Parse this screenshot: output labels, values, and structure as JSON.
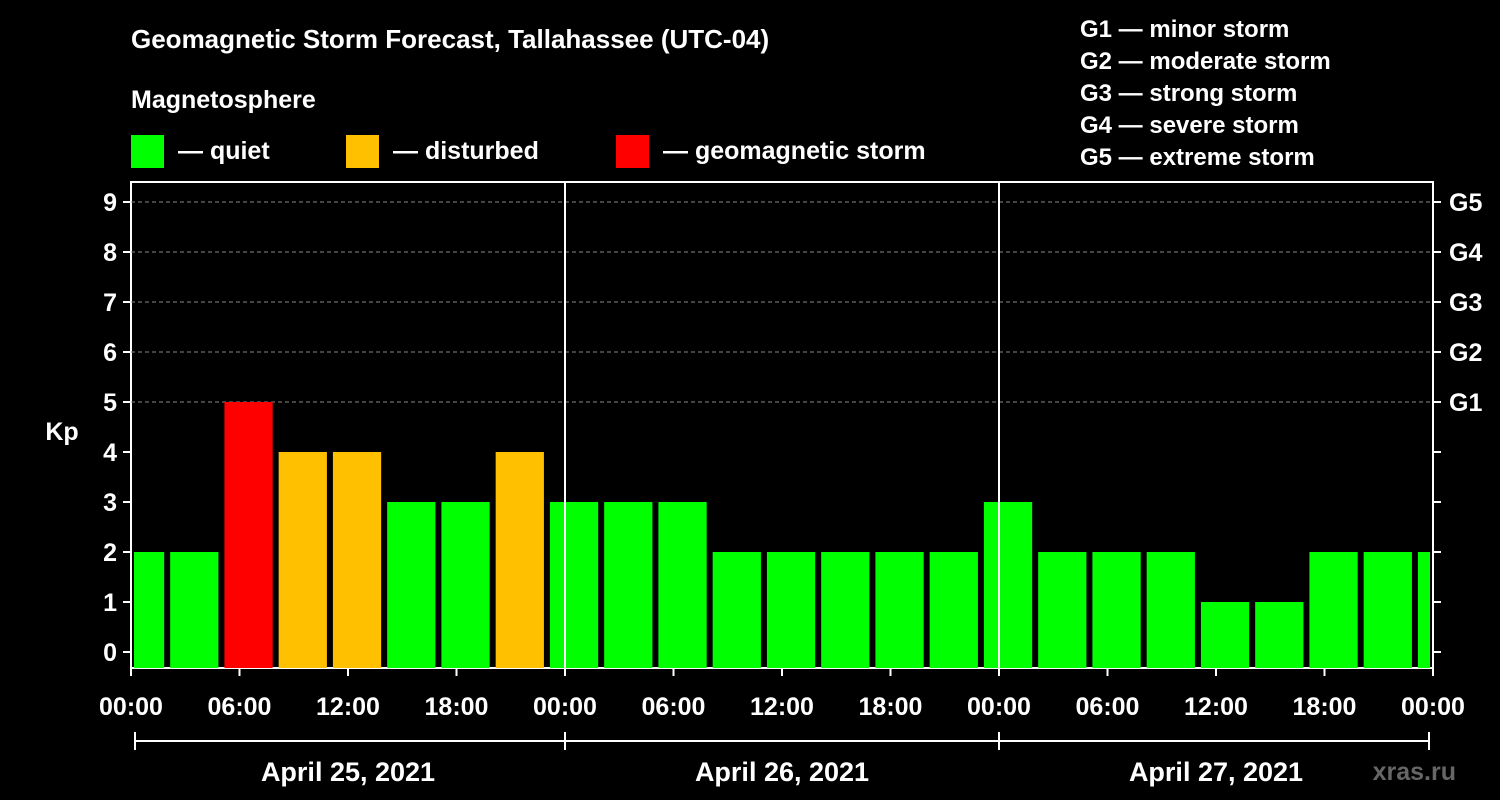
{
  "title": "Geomagnetic Storm Forecast, Tallahassee (UTC-04)",
  "magnetosphere_label": "Magnetosphere",
  "legend": [
    {
      "label": "— quiet",
      "color": "#00ff00"
    },
    {
      "label": "— disturbed",
      "color": "#ffc000"
    },
    {
      "label": "— geomagnetic storm",
      "color": "#ff0000"
    }
  ],
  "g_scale": [
    "G1 — minor storm",
    "G2 — moderate storm",
    "G3 — strong storm",
    "G4 — severe storm",
    "G5 — extreme storm"
  ],
  "watermark": "xras.ru",
  "colors": {
    "quiet": "#00ff00",
    "disturbed": "#ffc000",
    "storm": "#ff0000",
    "background": "#000000",
    "axis": "#ffffff"
  },
  "chart_data": {
    "type": "bar",
    "ylabel": "Kp",
    "ylim": [
      0,
      9
    ],
    "yticks": [
      0,
      1,
      2,
      3,
      4,
      5,
      6,
      7,
      8,
      9
    ],
    "right_ticks": [
      {
        "kp": 5,
        "label": "G1"
      },
      {
        "kp": 6,
        "label": "G2"
      },
      {
        "kp": 7,
        "label": "G3"
      },
      {
        "kp": 8,
        "label": "G4"
      },
      {
        "kp": 9,
        "label": "G5"
      }
    ],
    "xlim_hours": [
      0,
      72
    ],
    "x_tick_hours": [
      0,
      6,
      12,
      18,
      24,
      30,
      36,
      42,
      48,
      54,
      60,
      66,
      72
    ],
    "x_tick_labels": [
      "00:00",
      "06:00",
      "12:00",
      "18:00",
      "00:00",
      "06:00",
      "12:00",
      "18:00",
      "00:00",
      "06:00",
      "12:00",
      "18:00",
      "00:00"
    ],
    "day_separator_hours": [
      24,
      48
    ],
    "days": [
      {
        "label": "April 25, 2021",
        "start": 0,
        "end": 24
      },
      {
        "label": "April 26, 2021",
        "start": 24,
        "end": 48
      },
      {
        "label": "April 27, 2021",
        "start": 48,
        "end": 72
      }
    ],
    "bars": [
      {
        "start": 0,
        "end": 2,
        "kp": 2,
        "level": "quiet"
      },
      {
        "start": 2,
        "end": 5,
        "kp": 2,
        "level": "quiet"
      },
      {
        "start": 5,
        "end": 8,
        "kp": 5,
        "level": "storm"
      },
      {
        "start": 8,
        "end": 11,
        "kp": 4,
        "level": "disturbed"
      },
      {
        "start": 11,
        "end": 14,
        "kp": 4,
        "level": "disturbed"
      },
      {
        "start": 14,
        "end": 17,
        "kp": 3,
        "level": "quiet"
      },
      {
        "start": 17,
        "end": 20,
        "kp": 3,
        "level": "quiet"
      },
      {
        "start": 20,
        "end": 23,
        "kp": 4,
        "level": "disturbed"
      },
      {
        "start": 23,
        "end": 26,
        "kp": 3,
        "level": "quiet"
      },
      {
        "start": 26,
        "end": 29,
        "kp": 3,
        "level": "quiet"
      },
      {
        "start": 29,
        "end": 32,
        "kp": 3,
        "level": "quiet"
      },
      {
        "start": 32,
        "end": 35,
        "kp": 2,
        "level": "quiet"
      },
      {
        "start": 35,
        "end": 38,
        "kp": 2,
        "level": "quiet"
      },
      {
        "start": 38,
        "end": 41,
        "kp": 2,
        "level": "quiet"
      },
      {
        "start": 41,
        "end": 44,
        "kp": 2,
        "level": "quiet"
      },
      {
        "start": 44,
        "end": 47,
        "kp": 2,
        "level": "quiet"
      },
      {
        "start": 47,
        "end": 50,
        "kp": 3,
        "level": "quiet"
      },
      {
        "start": 50,
        "end": 53,
        "kp": 2,
        "level": "quiet"
      },
      {
        "start": 53,
        "end": 56,
        "kp": 2,
        "level": "quiet"
      },
      {
        "start": 56,
        "end": 59,
        "kp": 2,
        "level": "quiet"
      },
      {
        "start": 59,
        "end": 62,
        "kp": 1,
        "level": "quiet"
      },
      {
        "start": 62,
        "end": 65,
        "kp": 1,
        "level": "quiet"
      },
      {
        "start": 65,
        "end": 68,
        "kp": 2,
        "level": "quiet"
      },
      {
        "start": 68,
        "end": 71,
        "kp": 2,
        "level": "quiet"
      },
      {
        "start": 71,
        "end": 72,
        "kp": 2,
        "level": "quiet"
      }
    ]
  }
}
